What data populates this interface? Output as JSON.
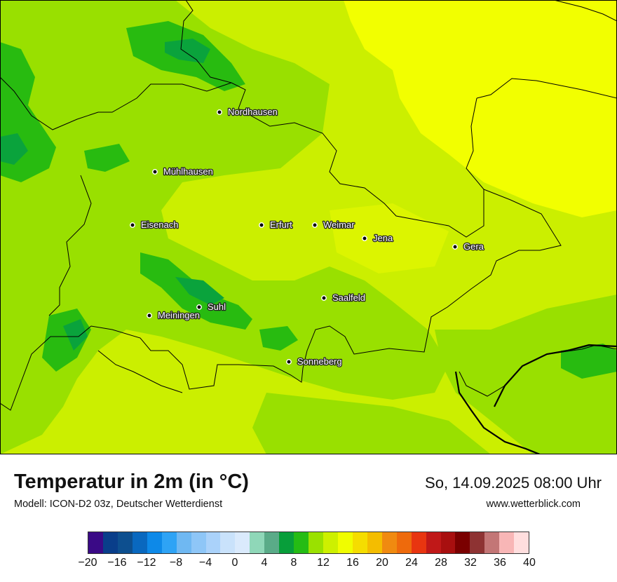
{
  "title": "Temperatur in 2m (in °C)",
  "subtitle": "Modell: ICON-D2 03z, Deutscher Wetterdienst",
  "datetime": "So, 14.09.2025 08:00 Uhr",
  "website": "www.wetterblick.com",
  "map": {
    "colors": {
      "t8_10": "#0aa33c",
      "t10_12": "#28bb10",
      "t12_14": "#99e000",
      "t14_16": "#cbef00",
      "t16_18": "#f2ff00",
      "border": "#000000"
    },
    "cities": [
      {
        "name": "Nordhausen"
      },
      {
        "name": "Mühlhausen"
      },
      {
        "name": "Eisenach"
      },
      {
        "name": "Erfurt"
      },
      {
        "name": "Weimar"
      },
      {
        "name": "Jena"
      },
      {
        "name": "Gera"
      },
      {
        "name": "Saalfeld"
      },
      {
        "name": "Suhl"
      },
      {
        "name": "Meiningen"
      },
      {
        "name": "Sonneberg"
      }
    ]
  },
  "legend": {
    "colors": [
      "#3a0a86",
      "#093e8a",
      "#0d4f8f",
      "#0968bf",
      "#0d89e8",
      "#2ea3f5",
      "#6fb8f2",
      "#8ec6f7",
      "#aad2fa",
      "#c9e2fb",
      "#daeafc",
      "#8fd7b8",
      "#5aab88",
      "#089e3a",
      "#25bc14",
      "#9ae100",
      "#cdf000",
      "#f0fd00",
      "#f5dd00",
      "#f4bd00",
      "#f08a10",
      "#ee6a0c",
      "#e83510",
      "#c01818",
      "#a80f0f",
      "#7a0000",
      "#8e3333",
      "#c37676",
      "#f8b6b6",
      "#ffdede"
    ],
    "ticks": [
      "−20",
      "−16",
      "−12",
      "−8",
      "−4",
      "0",
      "4",
      "8",
      "12",
      "16",
      "20",
      "24",
      "28",
      "32",
      "36",
      "40"
    ]
  }
}
